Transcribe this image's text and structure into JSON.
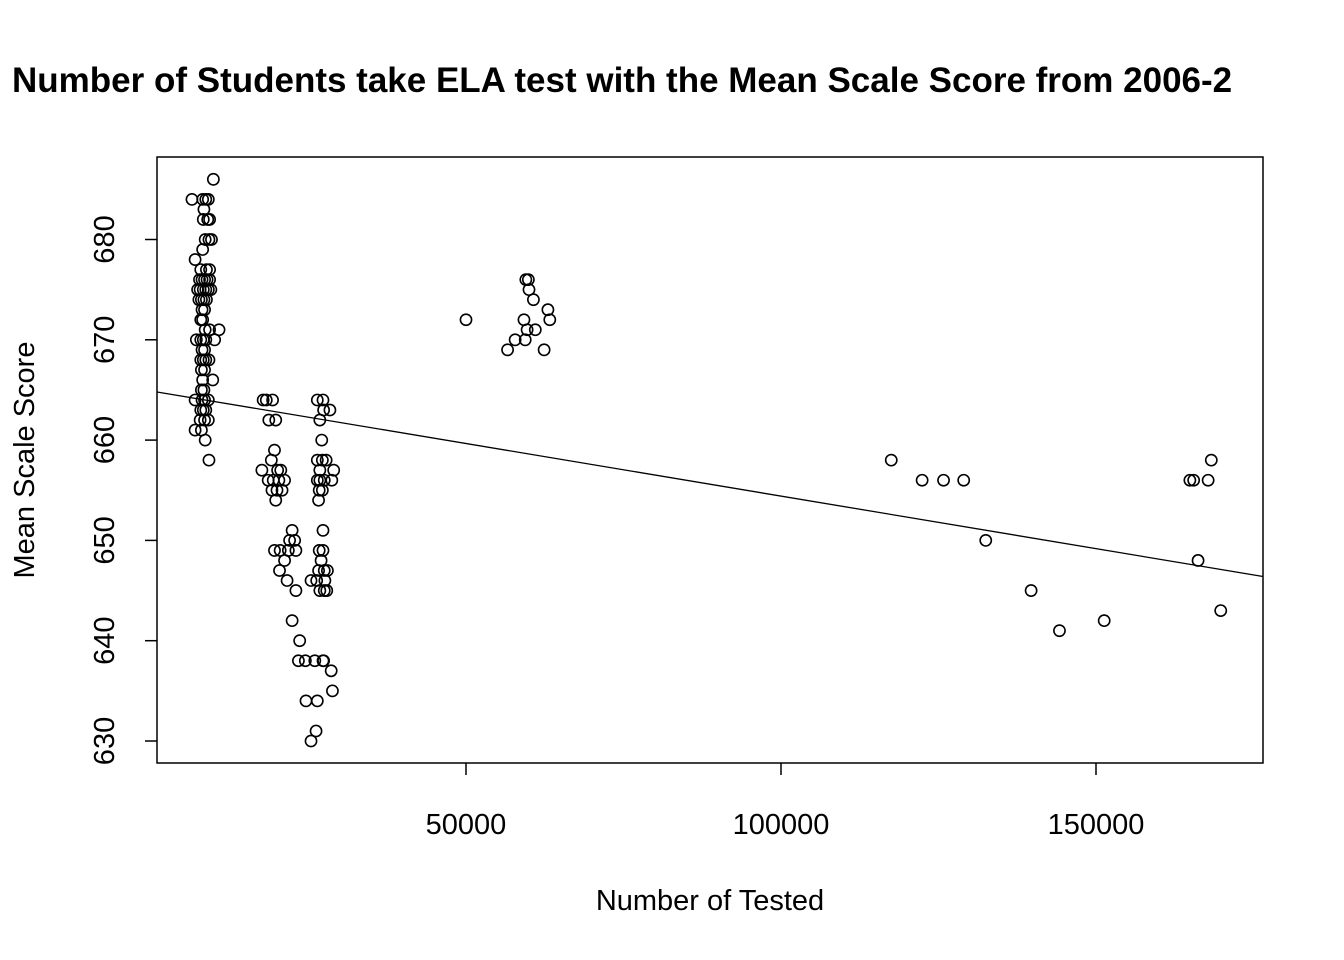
{
  "chart_data": {
    "type": "scatter",
    "title": "Number of Students take ELA test with the Mean Scale Score from 2006-2",
    "xlabel": "Number of Tested",
    "ylabel": "Mean Scale Score",
    "xlim": [
      0,
      175000
    ],
    "ylim": [
      628,
      688
    ],
    "x_ticks": [
      50000,
      100000,
      150000
    ],
    "y_ticks": [
      630,
      640,
      650,
      660,
      670,
      680
    ],
    "grid": false,
    "regression_line": {
      "x": [
        0,
        175000
      ],
      "y": [
        664.8,
        646.4
      ]
    },
    "points": [
      [
        6500,
        684
      ],
      [
        8200,
        684
      ],
      [
        8400,
        683
      ],
      [
        8700,
        684
      ],
      [
        9100,
        684
      ],
      [
        8300,
        682
      ],
      [
        9000,
        682
      ],
      [
        9300,
        682
      ],
      [
        7000,
        678
      ],
      [
        7400,
        675
      ],
      [
        8200,
        679
      ],
      [
        8600,
        680
      ],
      [
        9200,
        680
      ],
      [
        9600,
        680
      ],
      [
        7900,
        677
      ],
      [
        8800,
        677
      ],
      [
        9300,
        677
      ],
      [
        7700,
        676
      ],
      [
        8100,
        676
      ],
      [
        8500,
        676
      ],
      [
        8900,
        676
      ],
      [
        9300,
        676
      ],
      [
        7800,
        675
      ],
      [
        8300,
        675
      ],
      [
        8700,
        675
      ],
      [
        9100,
        675
      ],
      [
        9500,
        675
      ],
      [
        7600,
        674
      ],
      [
        8000,
        674
      ],
      [
        8400,
        674
      ],
      [
        8800,
        674
      ],
      [
        8100,
        673
      ],
      [
        8500,
        673
      ],
      [
        7900,
        672
      ],
      [
        8200,
        672
      ],
      [
        8600,
        671
      ],
      [
        9300,
        671
      ],
      [
        10800,
        671
      ],
      [
        7200,
        670
      ],
      [
        7900,
        670
      ],
      [
        8300,
        670
      ],
      [
        8700,
        670
      ],
      [
        10100,
        670
      ],
      [
        8100,
        669
      ],
      [
        8500,
        669
      ],
      [
        7900,
        668
      ],
      [
        8300,
        668
      ],
      [
        8700,
        668
      ],
      [
        9200,
        668
      ],
      [
        8000,
        667
      ],
      [
        8500,
        667
      ],
      [
        8200,
        666
      ],
      [
        9800,
        666
      ],
      [
        8000,
        665
      ],
      [
        8400,
        665
      ],
      [
        7000,
        664
      ],
      [
        8100,
        664
      ],
      [
        8500,
        664
      ],
      [
        9100,
        664
      ],
      [
        7900,
        663
      ],
      [
        8300,
        663
      ],
      [
        8700,
        663
      ],
      [
        7800,
        662
      ],
      [
        8500,
        662
      ],
      [
        9100,
        662
      ],
      [
        7000,
        661
      ],
      [
        8000,
        661
      ],
      [
        8600,
        660
      ],
      [
        9200,
        658
      ],
      [
        9900,
        686
      ],
      [
        17800,
        664
      ],
      [
        18300,
        664
      ],
      [
        19300,
        664
      ],
      [
        18700,
        662
      ],
      [
        19800,
        662
      ],
      [
        17600,
        657
      ],
      [
        19100,
        658
      ],
      [
        19600,
        659
      ],
      [
        18600,
        656
      ],
      [
        19400,
        656
      ],
      [
        20100,
        657
      ],
      [
        20600,
        657
      ],
      [
        19200,
        655
      ],
      [
        20000,
        655
      ],
      [
        20800,
        655
      ],
      [
        19800,
        654
      ],
      [
        20300,
        656
      ],
      [
        21200,
        656
      ],
      [
        19600,
        649
      ],
      [
        20500,
        649
      ],
      [
        21800,
        649
      ],
      [
        22400,
        651
      ],
      [
        20400,
        647
      ],
      [
        21200,
        648
      ],
      [
        22000,
        650
      ],
      [
        22800,
        650
      ],
      [
        21600,
        646
      ],
      [
        23000,
        649
      ],
      [
        23000,
        645
      ],
      [
        22400,
        642
      ],
      [
        23600,
        640
      ],
      [
        23400,
        638
      ],
      [
        24500,
        638
      ],
      [
        24600,
        634
      ],
      [
        26000,
        638
      ],
      [
        26400,
        634
      ],
      [
        26400,
        664
      ],
      [
        27300,
        664
      ],
      [
        27400,
        663
      ],
      [
        28400,
        663
      ],
      [
        26800,
        662
      ],
      [
        27100,
        660
      ],
      [
        26400,
        658
      ],
      [
        27200,
        658
      ],
      [
        27800,
        658
      ],
      [
        26800,
        657
      ],
      [
        29000,
        657
      ],
      [
        26400,
        656
      ],
      [
        26800,
        656
      ],
      [
        27500,
        656
      ],
      [
        28700,
        656
      ],
      [
        26700,
        655
      ],
      [
        27200,
        655
      ],
      [
        26600,
        654
      ],
      [
        27300,
        651
      ],
      [
        26700,
        649
      ],
      [
        27300,
        649
      ],
      [
        27000,
        648
      ],
      [
        26600,
        647
      ],
      [
        27500,
        647
      ],
      [
        28000,
        647
      ],
      [
        25400,
        646
      ],
      [
        26300,
        646
      ],
      [
        27600,
        646
      ],
      [
        26800,
        645
      ],
      [
        27500,
        645
      ],
      [
        27900,
        645
      ],
      [
        27400,
        638
      ],
      [
        28600,
        637
      ],
      [
        28800,
        635
      ],
      [
        25400,
        630
      ],
      [
        26200,
        631
      ],
      [
        27300,
        638
      ],
      [
        50000,
        672
      ],
      [
        56600,
        669
      ],
      [
        57800,
        670
      ],
      [
        59200,
        672
      ],
      [
        59400,
        670
      ],
      [
        59500,
        676
      ],
      [
        59900,
        676
      ],
      [
        60000,
        675
      ],
      [
        60700,
        674
      ],
      [
        61000,
        671
      ],
      [
        59700,
        671
      ],
      [
        62400,
        669
      ],
      [
        63000,
        673
      ],
      [
        63300,
        672
      ],
      [
        117500,
        658
      ],
      [
        122400,
        656
      ],
      [
        125800,
        656
      ],
      [
        129000,
        656
      ],
      [
        132500,
        650
      ],
      [
        139700,
        645
      ],
      [
        144200,
        641
      ],
      [
        151300,
        642
      ],
      [
        164900,
        656
      ],
      [
        165500,
        656
      ],
      [
        166200,
        648
      ],
      [
        167800,
        656
      ],
      [
        168300,
        658
      ],
      [
        169800,
        643
      ]
    ]
  }
}
